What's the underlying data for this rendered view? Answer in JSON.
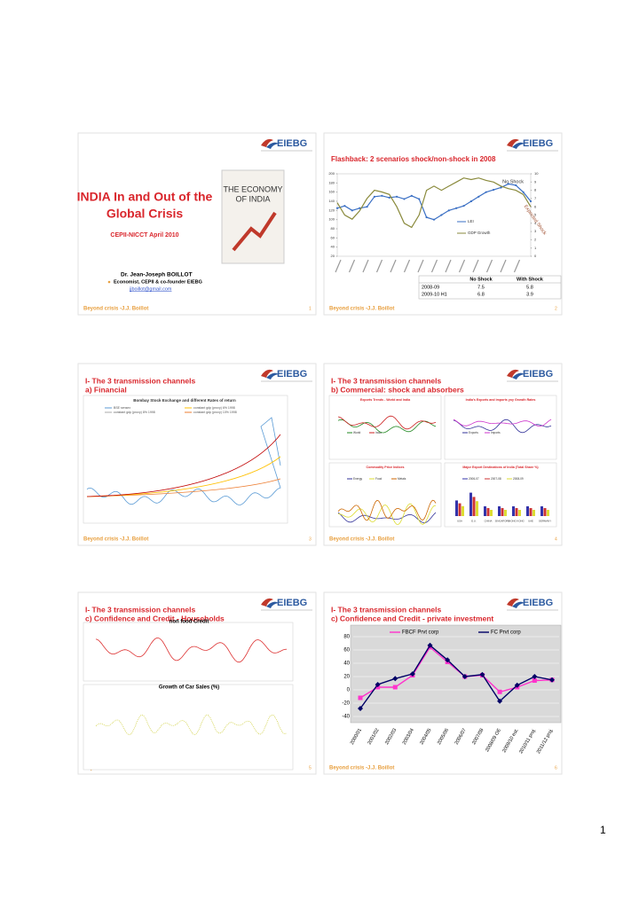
{
  "logo": "EIEBG",
  "footer": "Beyond crisis -J.J. Boillot",
  "page_number": "1",
  "slides": [
    {
      "number": "1",
      "title": [
        "INDIA In and Out of the",
        "Global Crisis"
      ],
      "event": "CEPII-NICCT April 2010",
      "book_title": [
        "THE ECONOMY",
        "OF INDIA"
      ],
      "author": "Dr. Jean-Joseph BOILLOT",
      "role": "Economist, CEPII & co-founder EIEBG",
      "email": "jjboillot@gmail.com"
    },
    {
      "number": "2",
      "title": "Flashback: 2 scenarios shock/non-shock in 2008",
      "chart": {
        "type": "line",
        "ylim": [
          20,
          200
        ],
        "yticks": [
          20,
          40,
          60,
          80,
          100,
          120,
          140,
          160,
          180,
          200
        ],
        "y2lim": [
          0,
          10
        ],
        "y2ticks": [
          0,
          1,
          2,
          3,
          4,
          5,
          6,
          7,
          8,
          9,
          10
        ],
        "annotations": [
          "No Shock",
          "Expected Shock"
        ],
        "series": [
          {
            "name": "LEI",
            "color": "#3a6fc4",
            "values": [
              125,
              130,
              120,
              125,
              128,
              150,
              152,
              148,
              150,
              145,
              152,
              145,
              105,
              100,
              110,
              120,
              125,
              130,
              140,
              150,
              160,
              165,
              170,
              178,
              175,
              160,
              140
            ]
          },
          {
            "name": "GDP Growth",
            "color": "#8a8a3c",
            "axis": "y2",
            "values": [
              6.5,
              5,
              4.5,
              5.5,
              7,
              8,
              7.8,
              7.5,
              6,
              4,
              3.5,
              5,
              8,
              8.5,
              8,
              8.5,
              9,
              9.5,
              9.3,
              9.5,
              9.2,
              9,
              8.5,
              8.2,
              8,
              7.5,
              6
            ]
          }
        ]
      },
      "table": {
        "header": [
          "No Shock",
          "With Shock"
        ],
        "rows": [
          [
            "2008-09",
            7.5,
            5.8
          ],
          [
            "2009-10 H1",
            6.8,
            3.9
          ]
        ]
      }
    },
    {
      "number": "3",
      "title": "I- The 3 transmission channels",
      "subtitle": "a) Financial",
      "chart_title": "Bombay Stock Exchange and different Rates of return",
      "legend": [
        "BSE sensex",
        "constant gdp (proxy) 6% 1998",
        "constant gdp (proxy) 8% 1998",
        "constant gdp (proxy) 10% 1998"
      ]
    },
    {
      "number": "4",
      "title": "I- The 3 transmission channels",
      "subtitle": "b) Commercial: shock and absorbers",
      "panels": [
        {
          "title": "Exports Trends - World and India",
          "legend": [
            "World",
            "India"
          ]
        },
        {
          "title": "India's Exports and imports yoy Growth Rates",
          "legend": [
            "Exports",
            "Imports"
          ]
        },
        {
          "title": "Commodity Price Indices",
          "legend": [
            "Energy",
            "Food",
            "Metals"
          ]
        },
        {
          "title": "Major Export Destinations of India (Total Share %)",
          "legend": [
            "2006-07",
            "2007-08",
            "2008-09"
          ],
          "categories": [
            "USA",
            "E.U.",
            "CHINA",
            "SINGAPORE",
            "HONG KONG",
            "UAE",
            "GERMANY"
          ]
        }
      ]
    },
    {
      "number": "5",
      "title": "I- The 3 transmission channels",
      "subtitle": "c) Confidence and Credit - Households",
      "chart_titles": [
        "non food Credit",
        "Growth of Car Sales (%)"
      ]
    },
    {
      "number": "6",
      "title": "I- The 3 transmission channels",
      "subtitle": "c) Confidence and Credit - private investment",
      "chart": {
        "type": "line",
        "ylim": [
          -40,
          80
        ],
        "yticks": [
          -40,
          -20,
          0,
          20,
          40,
          60,
          80
        ],
        "categories": [
          "2000/01",
          "2001/02",
          "2002/03",
          "2003/04",
          "2004/05",
          "2005/06",
          "2006/07",
          "2007/08",
          "2008/09 OE",
          "2009/10 est.",
          "2010/11 proj.",
          "2011/12 proj."
        ],
        "series": [
          {
            "name": "FBCF Prvt corp",
            "color": "#ff33cc",
            "values": [
              -12,
              4,
              4,
              22,
              64,
              42,
              20,
              22,
              -3,
              4,
              14,
              15
            ]
          },
          {
            "name": "FC Prvt corp",
            "color": "#000066",
            "values": [
              -28,
              8,
              17,
              24,
              67,
              45,
              20,
              23,
              -17,
              7,
              20,
              15
            ]
          }
        ]
      }
    }
  ]
}
